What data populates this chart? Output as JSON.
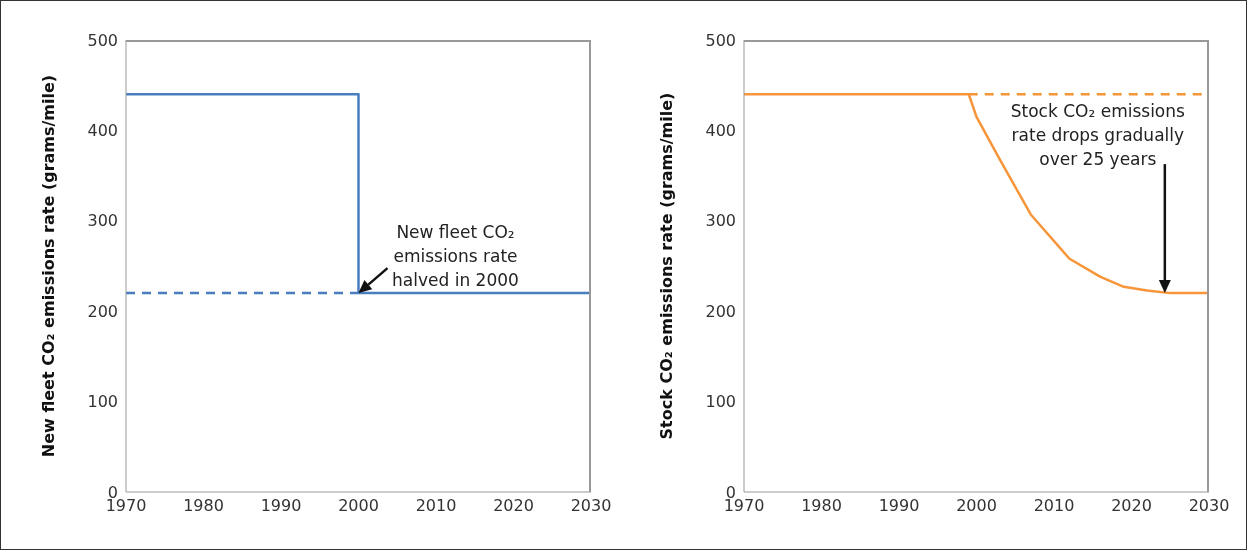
{
  "chart_data": [
    {
      "type": "line",
      "ylabel": "New fleet CO₂ emissions rate (grams/mile)",
      "xlim": [
        1970,
        2030
      ],
      "xticks": [
        1970,
        1980,
        1990,
        2000,
        2010,
        2020,
        2030
      ],
      "ylim": [
        0,
        500
      ],
      "yticks": [
        0,
        100,
        200,
        300,
        400,
        500
      ],
      "series": [
        {
          "type": "step",
          "color": "#4a7ebf",
          "x": [
            1970,
            2000,
            2030
          ],
          "values": [
            440,
            220,
            220
          ]
        },
        {
          "color": "#4a7ebf",
          "line_style": "dashed",
          "x": [
            1970,
            2000
          ],
          "values": [
            220,
            220
          ]
        }
      ],
      "annotations": [
        {
          "text": "New fleet CO₂ emissions rate halved in 2000",
          "x": 2000,
          "y": 220
        }
      ]
    },
    {
      "type": "line",
      "ylabel": "Stock CO₂ emissions rate (grams/mile)",
      "xlim": [
        1970,
        2030
      ],
      "xticks": [
        1970,
        1980,
        1990,
        2000,
        2010,
        2020,
        2030
      ],
      "ylim": [
        0,
        500
      ],
      "yticks": [
        0,
        100,
        200,
        300,
        400,
        500
      ],
      "series": [
        {
          "color": "#f7953a",
          "x": [
            1970,
            1999,
            2000,
            2003,
            2007,
            2012,
            2016,
            2019,
            2022,
            2025,
            2030
          ],
          "values": [
            440,
            440,
            415,
            368,
            307,
            258,
            238,
            227,
            223,
            220,
            220
          ]
        },
        {
          "color": "#f7953a",
          "line_style": "dashed",
          "x": [
            1999,
            2030
          ],
          "values": [
            440,
            440
          ]
        }
      ],
      "annotations": [
        "Stock CO₂ emissions rate drops gradually over 25 years"
      ]
    }
  ]
}
